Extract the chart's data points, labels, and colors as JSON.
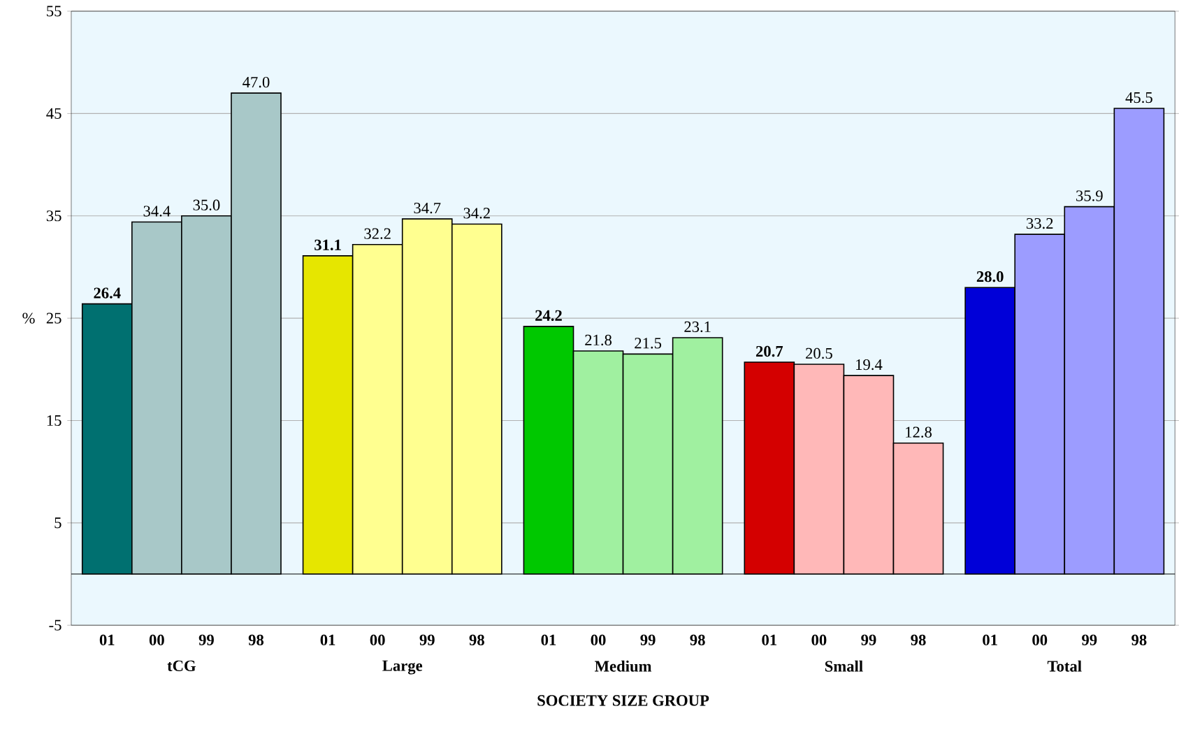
{
  "chart_data": {
    "type": "bar",
    "xlabel": "SOCIETY SIZE GROUP",
    "ylabel": "%",
    "categories": [
      "01",
      "00",
      "99",
      "98",
      "01",
      "00",
      "99",
      "98",
      "01",
      "00",
      "99",
      "98",
      "01",
      "00",
      "99",
      "98",
      "01",
      "00",
      "99",
      "98"
    ],
    "values": [
      26.4,
      34.4,
      35.0,
      47.0,
      31.1,
      32.2,
      34.7,
      34.2,
      24.2,
      21.8,
      21.5,
      23.1,
      20.7,
      20.5,
      19.4,
      12.8,
      28.0,
      33.2,
      35.9,
      45.5
    ],
    "value_labels": [
      "26.4",
      "34.4",
      "35.0",
      "47.0",
      "31.1",
      "32.2",
      "34.7",
      "34.2",
      "24.2",
      "21.8",
      "21.5",
      "23.1",
      "20.7",
      "20.5",
      "19.4",
      "12.8",
      "28.0",
      "33.2",
      "35.9",
      "45.5"
    ],
    "colors": [
      "#007070",
      "#a8c8c8",
      "#a8c8c8",
      "#a8c8c8",
      "#e6e600",
      "#ffff90",
      "#ffff90",
      "#ffff90",
      "#00c800",
      "#a0f0a0",
      "#a0f0a0",
      "#a0f0a0",
      "#d40000",
      "#ffb8b8",
      "#ffb8b8",
      "#ffb8b8",
      "#0000d8",
      "#9c9cff",
      "#9c9cff",
      "#9c9cff"
    ],
    "annotations": [
      "tCG",
      "Large",
      "Medium",
      "Small",
      "Total"
    ],
    "ylim": [
      -5,
      55
    ],
    "yticks": [
      -5,
      5,
      15,
      25,
      35,
      45,
      55
    ],
    "grid": "y"
  }
}
